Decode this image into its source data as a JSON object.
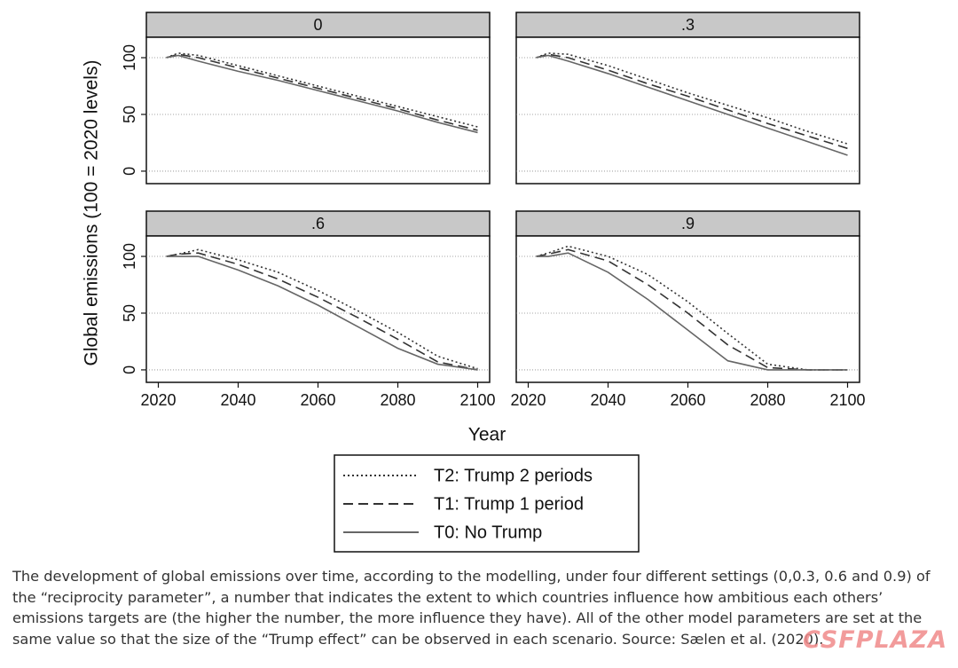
{
  "ylabel": "Global emissions (100 = 2020 levels)",
  "xlabel": "Year",
  "caption": "The development of global emissions over time, according to the modelling, under four different settings (0,0.3, 0.6 and 0.9) of the “reciprocity parameter”, a number that indicates the extent to which countries influence how ambitious each others’ emissions targets are (the higher the number, the more influence they have). All of the other model parameters are set at the same value so that the size of the “Trump effect” can be observed in each scenario. Source: Sælen et al. (2020).",
  "watermark": "CSFPLAZA",
  "chart_data": [
    {
      "type": "line",
      "title": "0",
      "x": [
        2022,
        2025,
        2030,
        2040,
        2050,
        2060,
        2070,
        2080,
        2090,
        2100
      ],
      "series": [
        {
          "name": "T2: Trump 2 periods",
          "color": "#333333",
          "style": "dotted",
          "values": [
            100,
            104,
            102,
            93,
            84,
            75,
            66,
            57,
            48,
            39
          ]
        },
        {
          "name": "T1: Trump 1 period",
          "color": "#333333",
          "style": "dashed",
          "values": [
            100,
            103,
            100,
            91,
            82,
            73,
            64,
            55,
            45,
            36
          ]
        },
        {
          "name": "T0: No Trump",
          "color": "#666666",
          "style": "solid",
          "values": [
            100,
            102,
            97,
            88,
            80,
            71,
            62,
            53,
            43,
            34
          ]
        }
      ],
      "xlim": [
        2017,
        2103
      ],
      "ylim": [
        -11,
        118
      ],
      "yticks": [
        0,
        50,
        100
      ],
      "grid": true
    },
    {
      "type": "line",
      "title": ".3",
      "x": [
        2022,
        2025,
        2030,
        2040,
        2050,
        2060,
        2070,
        2080,
        2090,
        2100
      ],
      "series": [
        {
          "name": "T2: Trump 2 periods",
          "color": "#333333",
          "style": "dotted",
          "values": [
            100,
            104,
            103,
            93,
            81,
            69,
            58,
            47,
            35,
            24
          ]
        },
        {
          "name": "T1: Trump 1 period",
          "color": "#333333",
          "style": "dashed",
          "values": [
            100,
            103,
            100,
            89,
            77,
            66,
            54,
            42,
            31,
            20
          ]
        },
        {
          "name": "T0: No Trump",
          "color": "#666666",
          "style": "solid",
          "values": [
            100,
            102,
            97,
            86,
            74,
            62,
            50,
            38,
            26,
            14
          ]
        }
      ],
      "xlim": [
        2017,
        2103
      ],
      "ylim": [
        -11,
        118
      ],
      "yticks": [
        0,
        50,
        100
      ],
      "grid": true
    },
    {
      "type": "line",
      "title": ".6",
      "x": [
        2022,
        2025,
        2030,
        2040,
        2050,
        2060,
        2070,
        2080,
        2090,
        2100
      ],
      "series": [
        {
          "name": "T2: Trump 2 periods",
          "color": "#333333",
          "style": "dotted",
          "values": [
            100,
            102,
            106,
            97,
            86,
            70,
            52,
            33,
            12,
            1
          ]
        },
        {
          "name": "T1: Trump 1 period",
          "color": "#333333",
          "style": "dashed",
          "values": [
            100,
            102,
            103,
            93,
            80,
            64,
            46,
            27,
            7,
            0
          ]
        },
        {
          "name": "T0: No Trump",
          "color": "#666666",
          "style": "solid",
          "values": [
            100,
            100,
            100,
            88,
            74,
            57,
            38,
            19,
            5,
            0
          ]
        }
      ],
      "xlim": [
        2017,
        2103
      ],
      "ylim": [
        -11,
        118
      ],
      "xticks": [
        2020,
        2040,
        2060,
        2080,
        2100
      ],
      "yticks": [
        0,
        50,
        100
      ],
      "grid": true
    },
    {
      "type": "line",
      "title": ".9",
      "x": [
        2022,
        2025,
        2030,
        2040,
        2050,
        2060,
        2070,
        2080,
        2090,
        2100
      ],
      "series": [
        {
          "name": "T2: Trump 2 periods",
          "color": "#333333",
          "style": "dotted",
          "values": [
            100,
            103,
            109,
            100,
            84,
            60,
            32,
            5,
            0,
            0
          ]
        },
        {
          "name": "T1: Trump 1 period",
          "color": "#333333",
          "style": "dashed",
          "values": [
            100,
            102,
            106,
            96,
            75,
            50,
            22,
            2,
            0,
            0
          ]
        },
        {
          "name": "T0: No Trump",
          "color": "#666666",
          "style": "solid",
          "values": [
            100,
            100,
            103,
            86,
            62,
            35,
            8,
            0,
            0,
            0
          ]
        }
      ],
      "xlim": [
        2017,
        2103
      ],
      "ylim": [
        -11,
        118
      ],
      "xticks": [
        2020,
        2040,
        2060,
        2080,
        2100
      ],
      "yticks": [
        0,
        50,
        100
      ],
      "grid": true
    }
  ]
}
